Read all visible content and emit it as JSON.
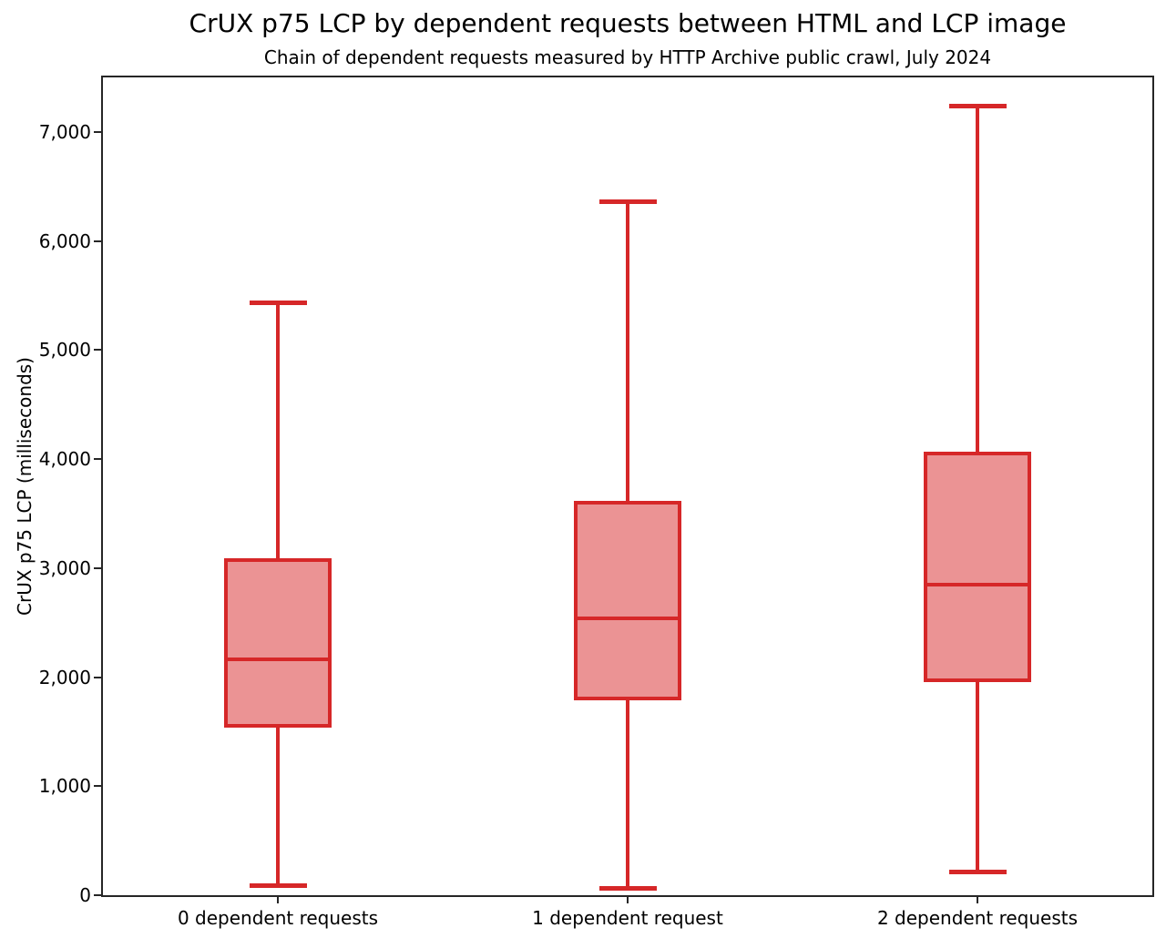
{
  "chart_data": {
    "type": "boxplot",
    "title": "CrUX p75 LCP by dependent requests between HTML and LCP image",
    "subtitle": "Chain of dependent requests measured by HTTP Archive public crawl, July 2024",
    "xlabel": "",
    "ylabel": "CrUX p75 LCP (milliseconds)",
    "ylim": [
      0,
      7500
    ],
    "yticks": [
      0,
      1000,
      2000,
      3000,
      4000,
      5000,
      6000,
      7000
    ],
    "ytick_labels": [
      "0",
      "1,000",
      "2,000",
      "3,000",
      "4,000",
      "5,000",
      "6,000",
      "7,000"
    ],
    "grid": false,
    "legend": false,
    "categories": [
      "0 dependent requests",
      "1 dependent request",
      "2 dependent requests"
    ],
    "boxes": [
      {
        "category": "0 dependent requests",
        "whisker_low": 85,
        "q1": 1535,
        "median": 2160,
        "q3": 3090,
        "whisker_high": 5430
      },
      {
        "category": "1 dependent request",
        "whisker_low": 60,
        "q1": 1790,
        "median": 2540,
        "q3": 3620,
        "whisker_high": 6360
      },
      {
        "category": "2 dependent requests",
        "whisker_low": 215,
        "q1": 1955,
        "median": 2850,
        "q3": 4070,
        "whisker_high": 7235
      }
    ],
    "colors": {
      "box_fill": "#eb9394",
      "box_edge": "#d62728",
      "whisker": "#d62728",
      "median": "#d62728",
      "axis": "#262626",
      "text": "#000000",
      "background": "#ffffff"
    }
  }
}
